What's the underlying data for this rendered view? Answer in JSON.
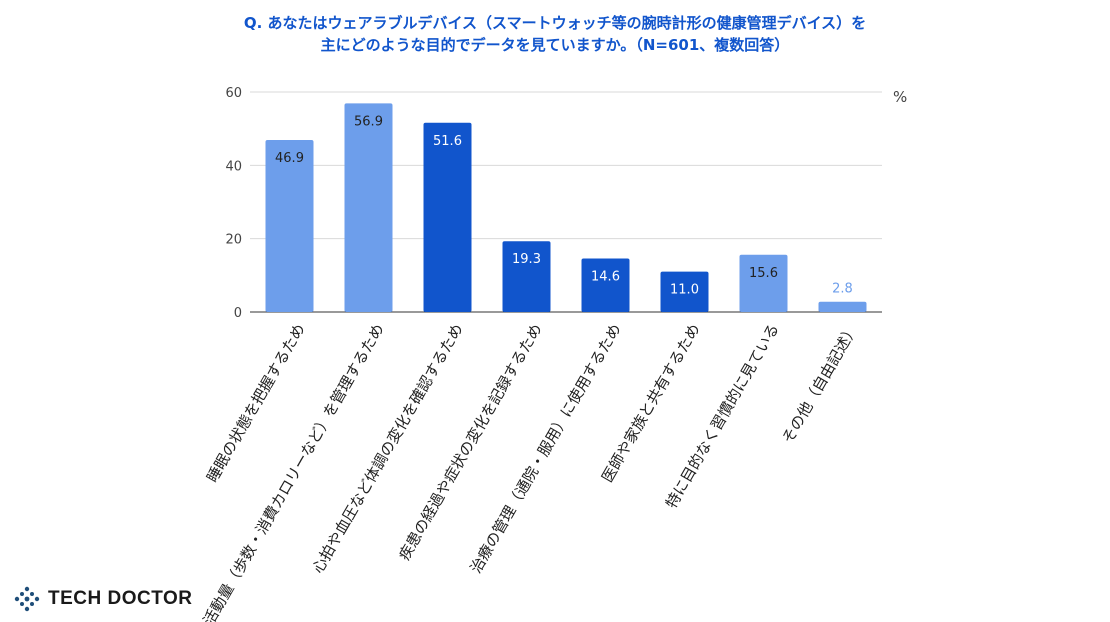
{
  "chart_data": {
    "type": "bar",
    "title": "Q. あなたはウェアラブルデバイス（スマートウォッチ等の腕時計形の健康管理デバイス）を",
    "subtitle": "主にどのような目的でデータを見ていますか。（N=601、複数回答）",
    "categories": [
      "睡眠の状態を把握するため",
      "活動量（歩数・消費カロリーなど）を管理するため",
      "心拍や血圧など体調の変化を確認するため",
      "疾患の経過や症状の変化を記録するため",
      "治療の管理（通院・服用）に使用するため",
      "医師や家族と共有するため",
      "特に目的なく習慣的に見ている",
      "その他（自由記述）"
    ],
    "values": [
      46.9,
      56.9,
      51.6,
      19.3,
      14.6,
      11.0,
      15.6,
      2.8
    ],
    "data_labels": [
      "46.9",
      "56.9",
      "51.6",
      "19.3",
      "14.6",
      "11.0",
      "15.6",
      "2.8"
    ],
    "bar_colors": [
      "#6d9eeb",
      "#6d9eeb",
      "#1155cc",
      "#1155cc",
      "#1155cc",
      "#1155cc",
      "#6d9eeb",
      "#6d9eeb"
    ],
    "ylim": [
      0,
      60
    ],
    "yticks": [
      "0",
      "20",
      "40",
      "60"
    ],
    "yunit": "%",
    "grid": true,
    "legend": "none"
  },
  "logo": {
    "text": "TECH DOCTOR",
    "color": "#1f4e79"
  }
}
